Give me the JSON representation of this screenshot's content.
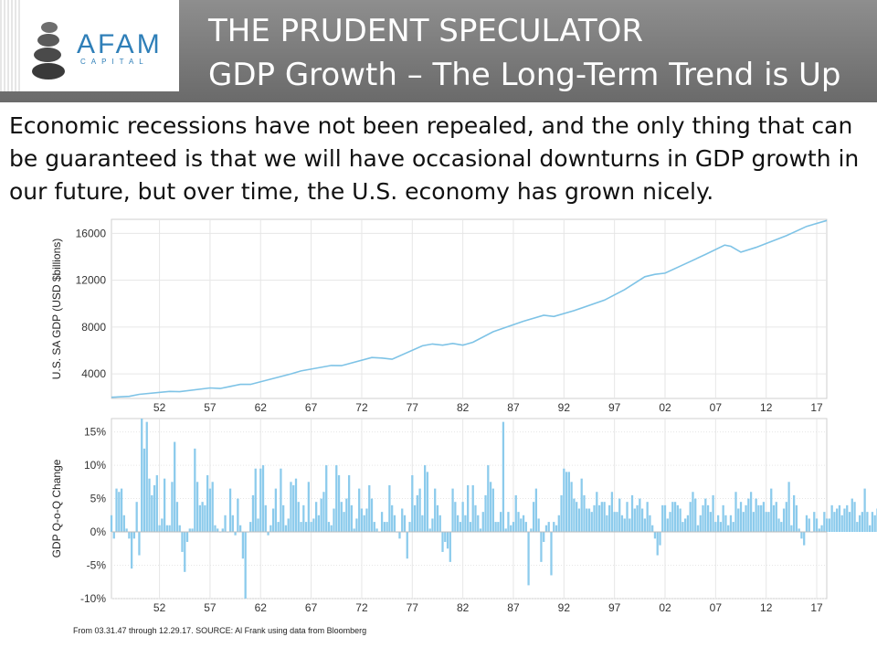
{
  "header": {
    "logo_name": "AFAM",
    "logo_sub": "CAPITAL",
    "title_line1": "THE PRUDENT SPECULATOR",
    "title_line2": "GDP Growth – The Long-Term Trend is Up"
  },
  "intro_text": "Economic recessions have not been repealed, and the only thing that can be guaranteed is that we will have occasional downturns in GDP growth in our future, but over time, the U.S. economy has grown nicely.",
  "footnote": "From 03.31.47 through 12.29.17. SOURCE: Al Frank using data from Bloomberg",
  "colors": {
    "series": "#7ec3e6",
    "bars": "#8ccbec",
    "banner": "#7a7a7a",
    "logo": "#2f7fb8"
  },
  "chart_data": [
    {
      "type": "line",
      "ylabel": "U.S. SA GDP (USD $billions)",
      "xlim": [
        1947.25,
        2017.99
      ],
      "ylim": [
        1900,
        17200
      ],
      "ytick_labels": [
        "4000",
        "8000",
        "12000",
        "16000"
      ],
      "ytick_values": [
        4000,
        8000,
        12000,
        16000
      ],
      "xtick_labels": [
        "52",
        "57",
        "62",
        "67",
        "72",
        "77",
        "82",
        "87",
        "92",
        "97",
        "02",
        "07",
        "12",
        "17"
      ],
      "xtick_values": [
        1952,
        1957,
        1962,
        1967,
        1972,
        1977,
        1982,
        1987,
        1992,
        1997,
        2002,
        2007,
        2012,
        2017
      ],
      "grid": true,
      "series": [
        {
          "x": [
            1947.25,
            1949,
            1950,
            1953,
            1954,
            1957,
            1958,
            1960,
            1961,
            1965,
            1966,
            1969,
            1970,
            1973,
            1974,
            1975,
            1978,
            1979,
            1980,
            1981,
            1982,
            1983,
            1985,
            1988,
            1990,
            1991,
            1993,
            1996,
            1998,
            2000,
            2001,
            2002,
            2004,
            2006,
            2007.9,
            2008.5,
            2009.5,
            2011,
            2014,
            2016,
            2017.99
          ],
          "values": [
            2000,
            2080,
            2250,
            2500,
            2480,
            2800,
            2750,
            3100,
            3100,
            4000,
            4250,
            4720,
            4700,
            5400,
            5350,
            5250,
            6400,
            6550,
            6450,
            6600,
            6450,
            6700,
            7600,
            8500,
            9000,
            8900,
            9400,
            10300,
            11200,
            12300,
            12500,
            12600,
            13400,
            14200,
            15000,
            14900,
            14400,
            14800,
            15800,
            16600,
            17100
          ]
        }
      ]
    },
    {
      "type": "bar",
      "ylabel": "GDP Q-o-Q Change",
      "xlim": [
        1947.25,
        2017.99
      ],
      "ylim": [
        -10,
        17
      ],
      "unit": "%",
      "ytick_labels": [
        "-10%",
        "-5%",
        "0%",
        "5%",
        "10%",
        "15%"
      ],
      "ytick_values": [
        -10,
        -5,
        0,
        5,
        10,
        15
      ],
      "xtick_labels": [
        "52",
        "57",
        "62",
        "67",
        "72",
        "77",
        "82",
        "87",
        "92",
        "97",
        "02",
        "07",
        "12",
        "17"
      ],
      "xtick_values": [
        1952,
        1957,
        1962,
        1967,
        1972,
        1977,
        1982,
        1987,
        1992,
        1997,
        2002,
        2007,
        2012,
        2017
      ],
      "grid": true,
      "x_start": 1947.25,
      "x_step": 0.25,
      "values": [
        2.5,
        -1,
        6.5,
        6,
        6.5,
        2.5,
        0.5,
        -1,
        -5.5,
        -1,
        4.5,
        -3.5,
        17,
        12.5,
        16.5,
        8,
        5.5,
        7,
        8.5,
        1,
        2,
        8,
        1,
        1,
        7.5,
        13.5,
        4.5,
        1,
        -3,
        -6,
        -1.5,
        0.5,
        0.5,
        12.5,
        7.5,
        4,
        4.5,
        4,
        8.5,
        6.5,
        7.5,
        1,
        0.5,
        0,
        0.5,
        2.5,
        0,
        6.5,
        2.5,
        -0.5,
        5,
        1,
        -4,
        -10,
        0,
        1.5,
        5.5,
        9.5,
        2,
        9.5,
        10,
        4,
        -0.5,
        1,
        3.5,
        6.5,
        1.5,
        9.5,
        4,
        1,
        2,
        7.5,
        7,
        8,
        4.5,
        1.5,
        4,
        1.5,
        7.5,
        1.5,
        2,
        4.5,
        2.5,
        5,
        6,
        10,
        1.5,
        1,
        3.5,
        10,
        8.5,
        4.5,
        3,
        5,
        8.5,
        4,
        0.5,
        2,
        6.5,
        3.5,
        2.5,
        3.5,
        7,
        5,
        1.5,
        0.5,
        0,
        3,
        1.5,
        1.5,
        7,
        4,
        2.5,
        0,
        -1,
        3.5,
        2.5,
        -4,
        1.5,
        8.5,
        4,
        5.5,
        6.5,
        2.5,
        10,
        9,
        0.5,
        2,
        6.5,
        4,
        2.5,
        -3,
        -1.5,
        -2.5,
        -4.5,
        6.5,
        4.5,
        2.5,
        1.5,
        4.5,
        2.5,
        7,
        1.5,
        7,
        4,
        2.5,
        0.5,
        3,
        5.5,
        10,
        7.5,
        6.5,
        1.5,
        1.5,
        3,
        16.5,
        0.5,
        3,
        1,
        1.5,
        5.5,
        3,
        2,
        2.5,
        1.5,
        -8,
        0.5,
        4.5,
        6.5,
        2,
        -4.5,
        -1.5,
        1,
        1.5,
        -6.5,
        1.5,
        1,
        2.5,
        5.5,
        9.5,
        9,
        9,
        7.5,
        5,
        4.5,
        3.5,
        8,
        5.5,
        3.5,
        3.5,
        3,
        4,
        6,
        4,
        4.5,
        4.5,
        2.5,
        4,
        6,
        3,
        3,
        5,
        2.5,
        2,
        4.5,
        2,
        5.5,
        3.5,
        4,
        5,
        3.5,
        2,
        4.5,
        2.5,
        1,
        -1,
        -3.5,
        -2,
        4,
        4,
        2,
        3,
        4.5,
        4.5,
        4,
        3.5,
        1.5,
        2,
        2.5,
        4.5,
        6,
        5,
        1,
        2.5,
        4,
        5,
        4,
        3,
        5.5,
        1.5,
        2.5,
        1.5,
        4,
        2.5,
        1,
        2.5,
        1.5,
        6,
        3.5,
        4.5,
        3,
        4,
        5,
        6,
        3,
        5,
        4,
        4,
        4.5,
        3,
        3,
        6.5,
        4,
        4.5,
        2,
        1.5,
        3.5,
        4.5,
        7.5,
        1,
        5.5,
        4,
        0.5,
        -1,
        -2,
        2.5,
        2,
        0,
        3,
        2,
        0.5,
        1,
        3,
        2,
        2,
        4,
        3,
        3.5,
        4,
        2.5,
        3.5,
        4,
        3,
        5,
        4.5,
        1.5,
        2.5,
        3,
        6.5,
        3,
        1,
        3,
        2.5,
        3.5,
        2.5,
        1.5,
        -2.5,
        0.5,
        -1,
        -8,
        -5.5,
        -0.5,
        1.5,
        4,
        1.5,
        4,
        2.5,
        3,
        -1.5,
        2.5,
        1.5,
        4.5,
        1.5,
        3.5,
        0.5,
        2,
        0.5,
        4,
        3.5,
        4,
        3,
        4.5,
        5,
        3.5,
        3,
        2,
        1.5,
        2.5,
        0.5,
        2.5,
        1,
        3,
        3,
        2.5,
        1.5,
        3,
        3.3,
        3.2,
        2.9
      ]
    }
  ]
}
